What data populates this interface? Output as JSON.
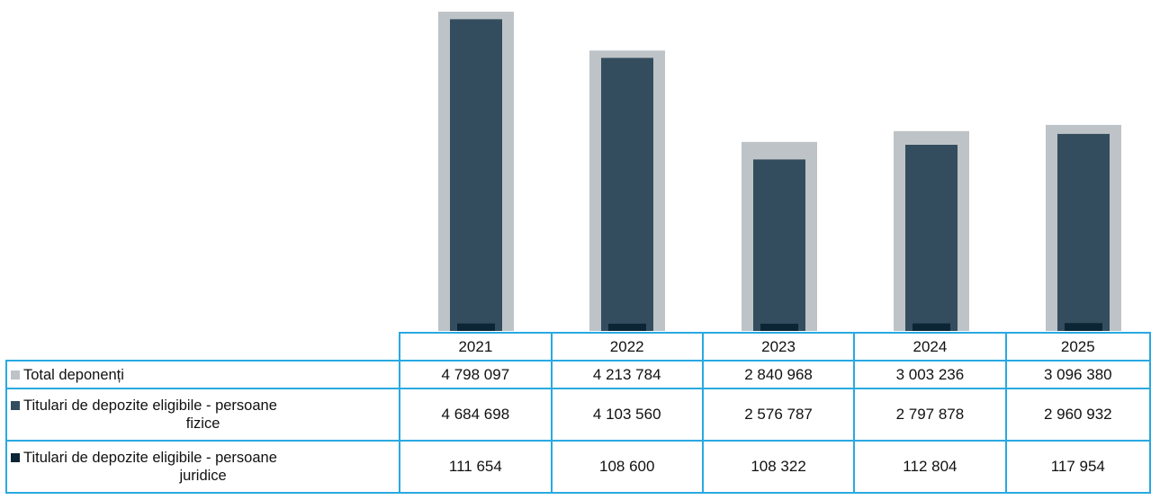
{
  "chart_data": {
    "type": "bar",
    "categories": [
      "2021",
      "2022",
      "2023",
      "2024",
      "2025"
    ],
    "series": [
      {
        "name": "Total deponenți",
        "values": [
          4798097,
          4213784,
          2840968,
          3003236,
          3096380
        ],
        "color": "#bdc3c7"
      },
      {
        "name": "Titulari de depozite eligibile - persoane fizice",
        "values": [
          4684698,
          4103560,
          2576787,
          2797878,
          2960932
        ],
        "color": "#344d5e"
      },
      {
        "name": "Titulari de depozite eligibile - persoane juridice",
        "values": [
          111654,
          108600,
          108322,
          112804,
          117954
        ],
        "color": "#0b2534"
      }
    ],
    "table": {
      "rows": [
        {
          "label_line1": "Total deponenți",
          "label_line2": "",
          "cells": [
            "4 798 097",
            "4 213 784",
            "2 840 968",
            "3 003 236",
            "3 096 380"
          ]
        },
        {
          "label_line1": "Titulari de depozite eligibile - persoane",
          "label_line2": "fizice",
          "cells": [
            "4 684 698",
            "4 103 560",
            "2 576 787",
            "2 797 878",
            "2 960 932"
          ]
        },
        {
          "label_line1": "Titulari de depozite eligibile - persoane",
          "label_line2": "juridice",
          "cells": [
            "111 654",
            "108 600",
            "108 322",
            "112 804",
            "117 954"
          ]
        }
      ]
    },
    "grid": false,
    "legend": "in-table"
  }
}
